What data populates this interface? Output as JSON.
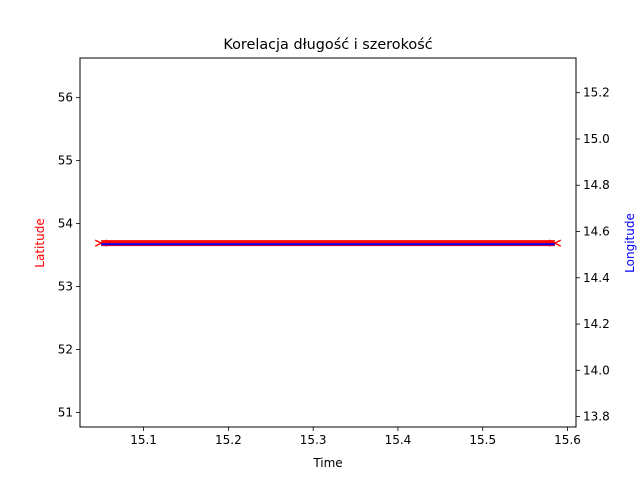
{
  "chart_data": {
    "type": "line",
    "title": "Korelacja długość i szerokość",
    "xlabel": "Time",
    "ylabel_left": "Latitude",
    "ylabel_right": "Longitude",
    "xlim": [
      15.025,
      15.61
    ],
    "ylim_left": [
      50.77,
      56.63
    ],
    "ylim_right": [
      13.755,
      15.35
    ],
    "x_ticks": [
      "15.1",
      "15.2",
      "15.3",
      "15.4",
      "15.5",
      "15.6"
    ],
    "y_left_ticks": [
      "51",
      "52",
      "53",
      "54",
      "55",
      "56"
    ],
    "y_right_ticks": [
      "13.8",
      "14.0",
      "14.2",
      "14.4",
      "14.6",
      "14.8",
      "15.0",
      "15.2"
    ],
    "grid": false,
    "colors": {
      "latitude": "#ff0000",
      "longitude": "#0000ff",
      "axes": "#000000",
      "ylabel_left": "#ff0000",
      "ylabel_right": "#0000ff"
    },
    "series": [
      {
        "axis": "left",
        "color": "#ff0000",
        "marker": "x",
        "x": [
          15.05,
          15.585
        ],
        "values": [
          53.69,
          53.69
        ]
      },
      {
        "axis": "right",
        "color": "#0000ff",
        "x": [
          15.05,
          15.585
        ],
        "values": [
          14.545,
          14.545
        ]
      }
    ]
  }
}
